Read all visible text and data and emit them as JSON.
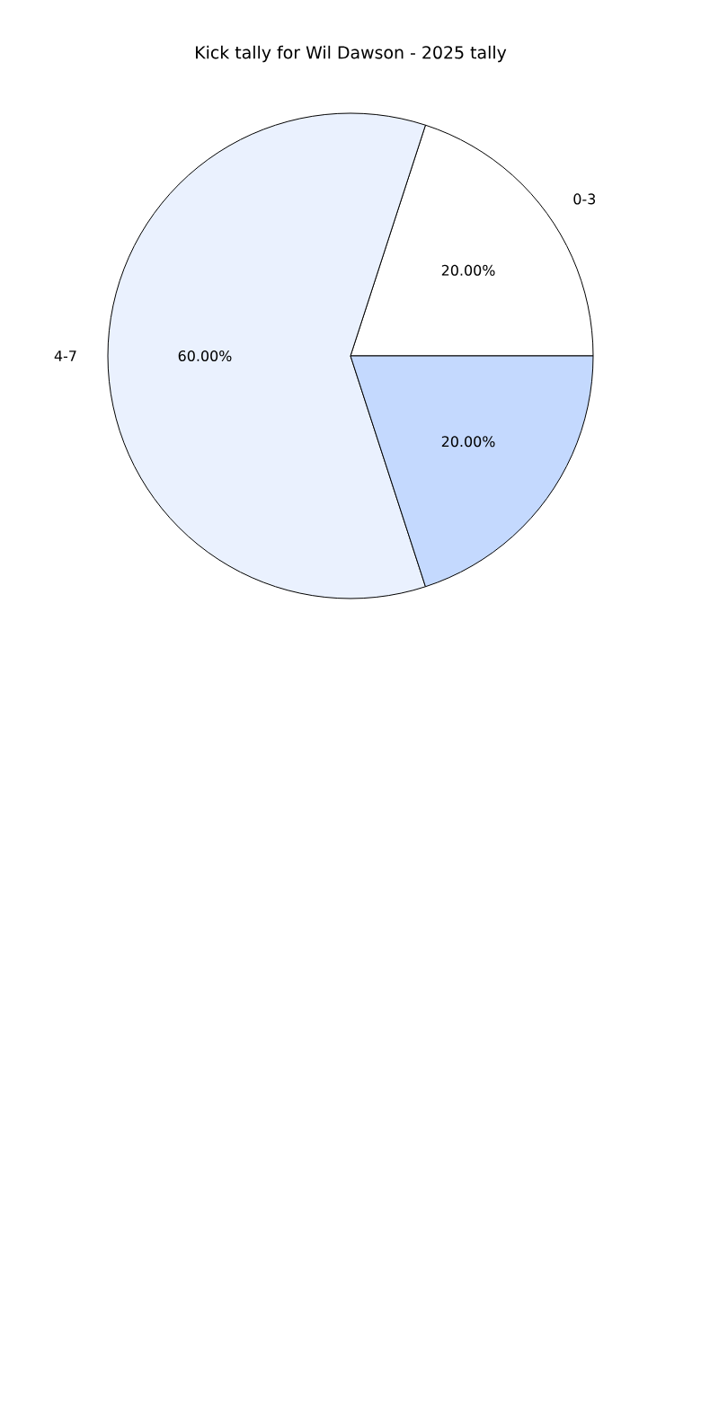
{
  "chart_data": {
    "type": "pie",
    "title": "Kick tally for Wil Dawson - 2025 tally",
    "categories": [
      "0-3",
      "4-7",
      null
    ],
    "values": [
      20,
      60,
      20
    ],
    "colors": [
      "#ffffff",
      "#eaf1fe",
      "#c4d9fe"
    ],
    "value_labels": [
      "20.00%",
      "60.00%",
      "20.00%"
    ]
  }
}
